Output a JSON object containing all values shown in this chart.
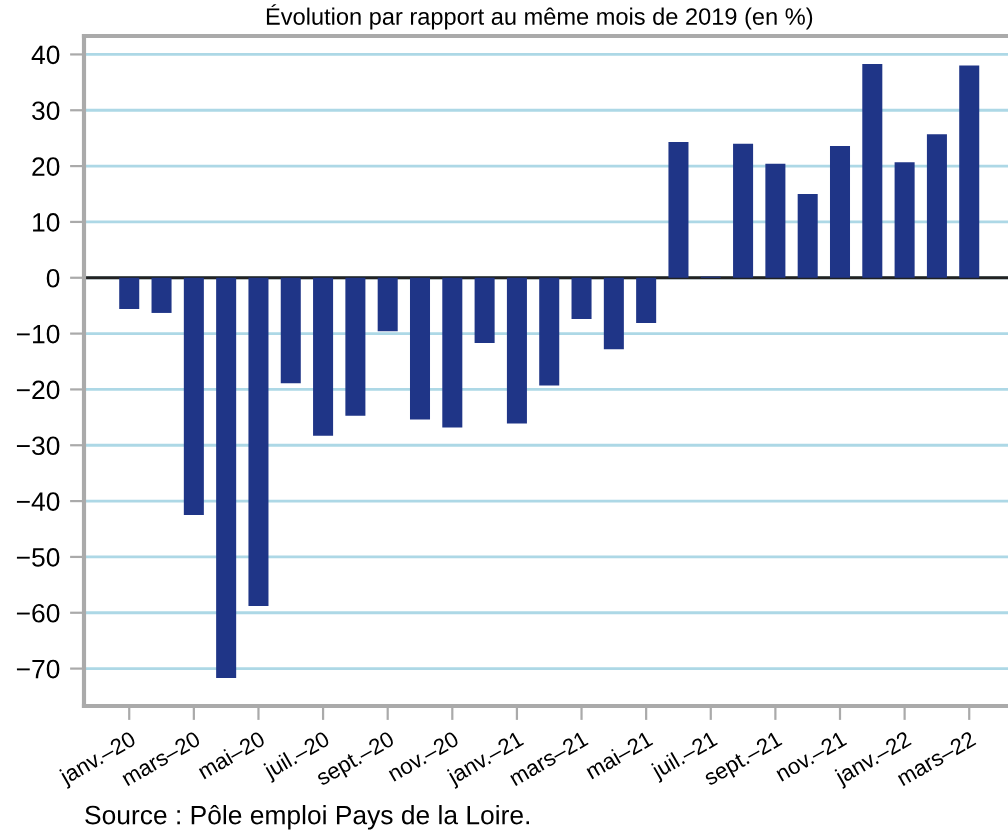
{
  "chart_data": {
    "type": "bar",
    "title": "Évolution par rapport au même mois de 2019 (en %)",
    "categories": [
      "janv.–20",
      null,
      "mars–20",
      null,
      "mai–20",
      null,
      "juil.–20",
      null,
      "sept.–20",
      null,
      "nov.–20",
      null,
      "janv.–21",
      null,
      "mars–21",
      null,
      "mai–21",
      null,
      "juil.–21",
      null,
      "sept.–21",
      null,
      "nov.–21",
      null,
      "janv.–22",
      null,
      "mars–22"
    ],
    "values": [
      -5.6,
      -6.3,
      -42.5,
      -71.7,
      -58.8,
      -18.9,
      -28.3,
      -24.7,
      -9.6,
      -25.4,
      -26.8,
      -11.7,
      -26.1,
      -19.3,
      -7.4,
      -12.8,
      -8.1,
      24.3,
      0.2,
      24.0,
      20.4,
      15.0,
      23.6,
      38.3,
      20.7,
      25.7,
      38.0
    ],
    "color": "#1f3587",
    "ylim": [
      -76.7,
      43.3
    ],
    "yticks": [
      -70,
      -60,
      -50,
      -40,
      -30,
      -20,
      -10,
      0,
      10,
      20,
      30,
      40
    ],
    "grid": "y",
    "annotations": [
      "Source : Pôle emploi Pays de la Loire."
    ]
  }
}
